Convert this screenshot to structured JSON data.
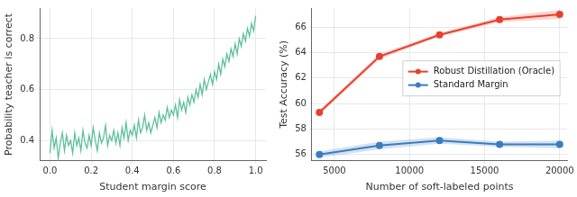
{
  "chart_data": [
    {
      "type": "line",
      "xlabel": "Student margin score",
      "ylabel": "Probability teacher is correct",
      "x": [
        0.0,
        0.01,
        0.02,
        0.03,
        0.04,
        0.05,
        0.06,
        0.07,
        0.08,
        0.09,
        0.1,
        0.11,
        0.12,
        0.13,
        0.14,
        0.15,
        0.16,
        0.17,
        0.18,
        0.19,
        0.2,
        0.21,
        0.22,
        0.23,
        0.24,
        0.25,
        0.26,
        0.27,
        0.28,
        0.29,
        0.3,
        0.31,
        0.32,
        0.33,
        0.34,
        0.35,
        0.36,
        0.37,
        0.38,
        0.39,
        0.4,
        0.41,
        0.42,
        0.43,
        0.44,
        0.45,
        0.46,
        0.47,
        0.48,
        0.49,
        0.5,
        0.51,
        0.52,
        0.53,
        0.54,
        0.55,
        0.56,
        0.57,
        0.58,
        0.59,
        0.6,
        0.61,
        0.62,
        0.63,
        0.64,
        0.65,
        0.66,
        0.67,
        0.68,
        0.69,
        0.7,
        0.71,
        0.72,
        0.73,
        0.74,
        0.75,
        0.76,
        0.77,
        0.78,
        0.79,
        0.8,
        0.81,
        0.82,
        0.83,
        0.84,
        0.85,
        0.86,
        0.87,
        0.88,
        0.89,
        0.9,
        0.91,
        0.92,
        0.93,
        0.94,
        0.95,
        0.96,
        0.97,
        0.98,
        0.99,
        1.0
      ],
      "values": [
        0.35,
        0.44,
        0.37,
        0.41,
        0.33,
        0.39,
        0.43,
        0.36,
        0.42,
        0.38,
        0.4,
        0.35,
        0.43,
        0.38,
        0.41,
        0.36,
        0.44,
        0.39,
        0.37,
        0.42,
        0.38,
        0.45,
        0.4,
        0.36,
        0.43,
        0.39,
        0.41,
        0.46,
        0.38,
        0.42,
        0.4,
        0.44,
        0.39,
        0.43,
        0.38,
        0.45,
        0.41,
        0.47,
        0.4,
        0.44,
        0.42,
        0.46,
        0.41,
        0.48,
        0.43,
        0.45,
        0.5,
        0.44,
        0.47,
        0.43,
        0.46,
        0.49,
        0.45,
        0.51,
        0.47,
        0.5,
        0.48,
        0.53,
        0.49,
        0.52,
        0.5,
        0.54,
        0.49,
        0.56,
        0.52,
        0.55,
        0.51,
        0.57,
        0.54,
        0.58,
        0.55,
        0.6,
        0.57,
        0.62,
        0.58,
        0.64,
        0.6,
        0.63,
        0.66,
        0.62,
        0.67,
        0.64,
        0.7,
        0.66,
        0.72,
        0.69,
        0.74,
        0.71,
        0.76,
        0.73,
        0.78,
        0.74,
        0.8,
        0.77,
        0.82,
        0.79,
        0.84,
        0.81,
        0.86,
        0.83,
        0.89
      ],
      "color": "#5fbf9f",
      "xlim": [
        -0.05,
        1.05
      ],
      "xticks": [
        {
          "value": 0,
          "label": "0.0"
        },
        0.2,
        0.4,
        0.6,
        0.8,
        {
          "value": 1,
          "label": "1.0"
        }
      ],
      "ylim": [
        0.32,
        0.92
      ],
      "yticks": [
        0.4,
        0.6,
        0.8
      ],
      "grid": true
    },
    {
      "type": "line",
      "xlabel": "Number of soft-labeled points",
      "ylabel": "Test Accuracy (%)",
      "x": [
        4000,
        8000,
        12000,
        16000,
        20000
      ],
      "series": [
        {
          "name": "Robust Distillation (Oracle)",
          "color": "#e8412f",
          "marker": "circle",
          "values": [
            59.3,
            63.7,
            65.4,
            66.6,
            67.0
          ],
          "error": [
            0.2,
            0.2,
            0.15,
            0.2,
            0.35
          ]
        },
        {
          "name": "Standard Margin",
          "color": "#3a7dc1",
          "marker": "circle",
          "values": [
            56.0,
            56.7,
            57.1,
            56.8,
            56.8
          ],
          "error": [
            0.25,
            0.3,
            0.25,
            0.2,
            0.3
          ]
        }
      ],
      "xlim": [
        3500,
        20500
      ],
      "xticks": [
        5000,
        10000,
        15000,
        20000
      ],
      "ylim": [
        55.5,
        67.5
      ],
      "yticks": [
        56,
        58,
        60,
        62,
        64,
        66
      ],
      "grid": true,
      "legend": "center right"
    }
  ]
}
